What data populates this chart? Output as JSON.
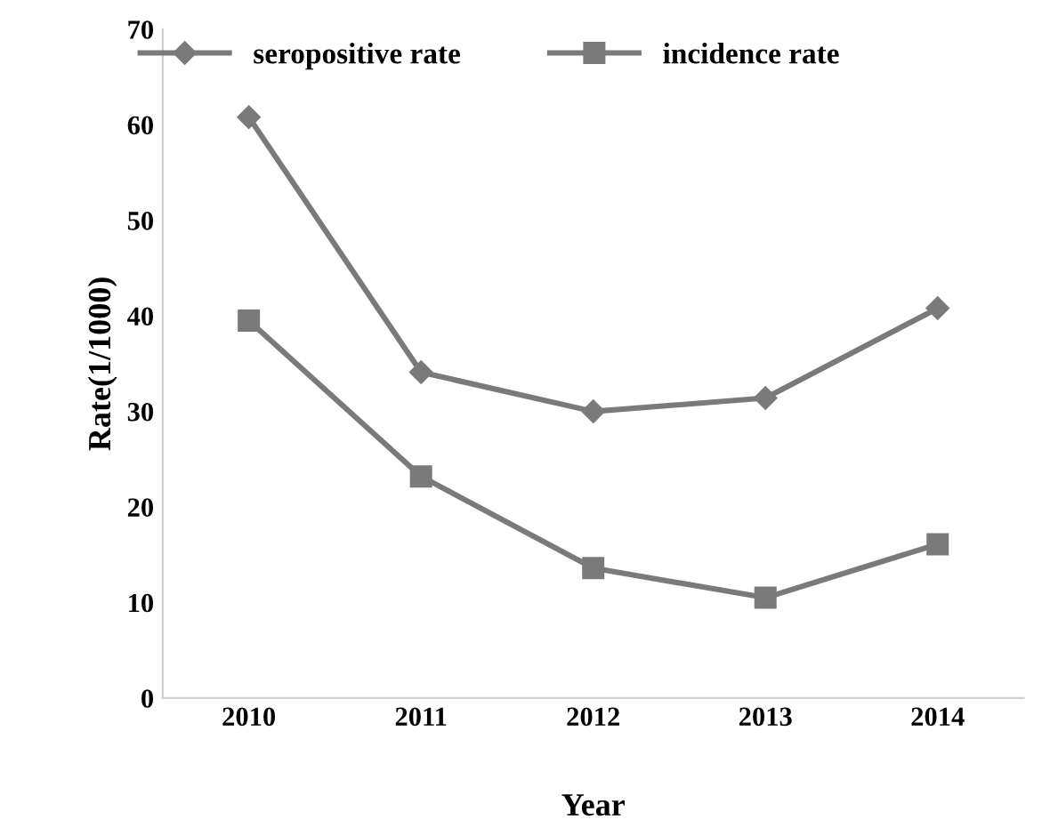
{
  "chart_data": {
    "type": "line",
    "xlabel": "Year",
    "ylabel": "Rate(1/1000)",
    "categories": [
      "2010",
      "2011",
      "2012",
      "2013",
      "2014"
    ],
    "series": [
      {
        "name": "seropositive rate",
        "color": "#7a7a7a",
        "marker": "diamond",
        "values": [
          60.8,
          34.1,
          30.0,
          31.4,
          40.8
        ]
      },
      {
        "name": "incidence rate",
        "color": "#7a7a7a",
        "marker": "square",
        "values": [
          39.5,
          23.2,
          13.6,
          10.5,
          16.1
        ]
      }
    ],
    "ylim": [
      0,
      70
    ],
    "yticks": [
      0,
      10,
      20,
      30,
      40,
      50,
      60,
      70
    ],
    "grid": false,
    "legend": "top",
    "line_style": "solid"
  }
}
